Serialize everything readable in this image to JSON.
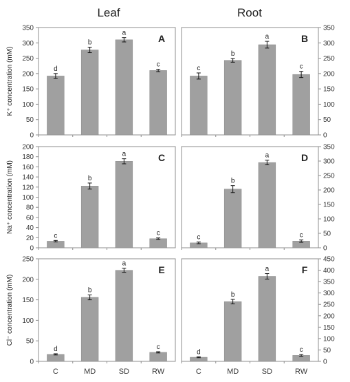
{
  "figure": {
    "column_titles": [
      "Leaf",
      "Root"
    ],
    "row_ylabels": [
      "K⁺ concentration (mM)",
      "Na⁺ concentration (mM)",
      "Cl⁻ concentration (mM)"
    ]
  },
  "colors": {
    "bar": "#a0a0a0",
    "bar_edge": "#8a8a8a",
    "axis": "#8c8c8c",
    "text": "#222222",
    "tick_text": "#333333"
  },
  "chart_data": [
    {
      "type": "bar",
      "panel": "A",
      "column": "Leaf",
      "categories": [
        "C",
        "MD",
        "SD",
        "RW"
      ],
      "values": [
        192,
        277,
        310,
        210
      ],
      "errors": [
        8,
        9,
        7,
        4
      ],
      "letters": [
        "d",
        "b",
        "a",
        "c"
      ],
      "ylim": [
        0,
        350
      ],
      "yticks": [
        0,
        50,
        100,
        150,
        200,
        250,
        300,
        350
      ],
      "ylabel": "K⁺ concentration (mM)",
      "y_axis_side": "left"
    },
    {
      "type": "bar",
      "panel": "B",
      "column": "Root",
      "categories": [
        "C",
        "MD",
        "SD",
        "RW"
      ],
      "values": [
        192,
        243,
        294,
        197
      ],
      "errors": [
        10,
        6,
        11,
        10
      ],
      "letters": [
        "c",
        "b",
        "a",
        "c"
      ],
      "ylim": [
        0,
        350
      ],
      "yticks": [
        0,
        50,
        100,
        150,
        200,
        250,
        300,
        350
      ],
      "y_axis_side": "right"
    },
    {
      "type": "bar",
      "panel": "C",
      "column": "Leaf",
      "categories": [
        "C",
        "MD",
        "SD",
        "RW"
      ],
      "values": [
        13,
        122,
        171,
        18
      ],
      "errors": [
        1.5,
        6,
        5,
        1.5
      ],
      "letters": [
        "c",
        "b",
        "a",
        "c"
      ],
      "ylim": [
        0,
        200
      ],
      "yticks": [
        0,
        20,
        40,
        60,
        80,
        100,
        120,
        140,
        160,
        180,
        200
      ],
      "ylabel": "Na⁺ concentration (mM)",
      "y_axis_side": "left"
    },
    {
      "type": "bar",
      "panel": "D",
      "column": "Root",
      "categories": [
        "C",
        "MD",
        "SD",
        "RW"
      ],
      "values": [
        17,
        203,
        295,
        23
      ],
      "errors": [
        3,
        12,
        8,
        4
      ],
      "letters": [
        "c",
        "b",
        "a",
        "c"
      ],
      "ylim": [
        0,
        350
      ],
      "yticks": [
        0,
        50,
        100,
        150,
        200,
        250,
        300,
        350
      ],
      "y_axis_side": "right"
    },
    {
      "type": "bar",
      "panel": "E",
      "column": "Leaf",
      "categories": [
        "C",
        "MD",
        "SD",
        "RW"
      ],
      "values": [
        17,
        156,
        222,
        22
      ],
      "errors": [
        1.5,
        6,
        5,
        1.5
      ],
      "letters": [
        "d",
        "b",
        "a",
        "c"
      ],
      "ylim": [
        0,
        250
      ],
      "yticks": [
        0,
        50,
        100,
        150,
        200,
        250
      ],
      "ylabel": "Cl⁻ concentration (mM)",
      "y_axis_side": "left",
      "show_categories": true
    },
    {
      "type": "bar",
      "panel": "F",
      "column": "Root",
      "categories": [
        "C",
        "MD",
        "SD",
        "RW"
      ],
      "values": [
        18,
        262,
        373,
        26
      ],
      "errors": [
        2,
        10,
        12,
        4
      ],
      "letters": [
        "d",
        "b",
        "a",
        "c"
      ],
      "ylim": [
        0,
        450
      ],
      "yticks": [
        0,
        50,
        100,
        150,
        200,
        250,
        300,
        350,
        400,
        450
      ],
      "y_axis_side": "right",
      "show_categories": true
    }
  ]
}
